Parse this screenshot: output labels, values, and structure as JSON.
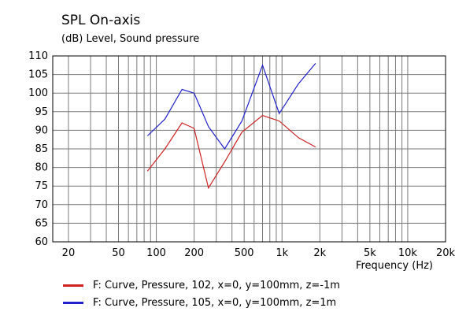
{
  "colors": {
    "series1": "#cc2222",
    "series2": "#2222cc",
    "grid": "#7a7a7a",
    "frame": "#000000"
  },
  "chart_data": {
    "type": "line",
    "title": "SPL On-axis",
    "subtitle": "(dB)  Level, Sound pressure",
    "xlabel": "Frequency  (Hz)",
    "ylabel": "Level, Sound pressure",
    "xscale": "log",
    "xlim": [
      15,
      20000
    ],
    "ylim": [
      60,
      110
    ],
    "grid": true,
    "legend_position": "bottom-left",
    "yticks": [
      60,
      65,
      70,
      75,
      80,
      85,
      90,
      95,
      100,
      105,
      110
    ],
    "xticks": [
      {
        "value": 20,
        "label": "20"
      },
      {
        "value": 50,
        "label": "50"
      },
      {
        "value": 100,
        "label": "100"
      },
      {
        "value": 200,
        "label": "200"
      },
      {
        "value": 500,
        "label": "500"
      },
      {
        "value": 1000,
        "label": "1k"
      },
      {
        "value": 2000,
        "label": "2k"
      },
      {
        "value": 5000,
        "label": "5k"
      },
      {
        "value": 10000,
        "label": "10k"
      },
      {
        "value": 20000,
        "label": "20k"
      }
    ],
    "series": [
      {
        "name": "F: Curve, Pressure, 102, x=0, y=100mm, z=-1m",
        "color": "#cc2222",
        "x": [
          85,
          117,
          160,
          200,
          260,
          350,
          480,
          700,
          950,
          1350,
          1850
        ],
        "y": [
          79,
          85,
          92,
          90.5,
          74.5,
          81.5,
          89.5,
          94,
          92.5,
          88,
          85.5
        ]
      },
      {
        "name": "F: Curve, Pressure, 105, x=0, y=100mm, z=1m",
        "color": "#2222cc",
        "x": [
          85,
          117,
          160,
          200,
          260,
          350,
          480,
          700,
          950,
          1350,
          1850
        ],
        "y": [
          88.5,
          93,
          101,
          100,
          91,
          85,
          92.5,
          107.5,
          94.5,
          102.5,
          108
        ]
      }
    ]
  }
}
